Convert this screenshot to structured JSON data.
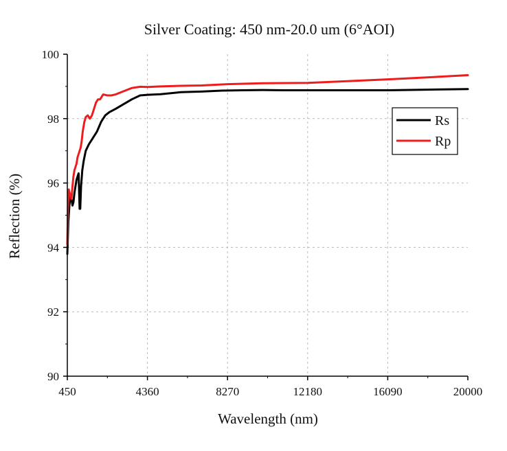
{
  "chart_data": {
    "type": "line",
    "title": "Silver Coating: 450 nm-20.0 um (6°AOI)",
    "xlabel": "Wavelength (nm)",
    "ylabel": "Reflection (%)",
    "xlim": [
      450,
      20000
    ],
    "ylim": [
      90,
      100
    ],
    "xticks": [
      450,
      4360,
      8270,
      12180,
      16090,
      20000
    ],
    "yticks": [
      90,
      92,
      94,
      96,
      98,
      100
    ],
    "grid": true,
    "legend_position": "top-right",
    "series": [
      {
        "name": "Rs",
        "color": "#000000",
        "x": [
          450,
          500,
          550,
          600,
          650,
          700,
          750,
          800,
          850,
          900,
          950,
          1000,
          1050,
          1080,
          1120,
          1180,
          1250,
          1350,
          1500,
          1700,
          1900,
          2100,
          2300,
          2500,
          2800,
          3200,
          3600,
          4000,
          4360,
          5000,
          6000,
          7000,
          8000,
          9000,
          10000,
          11000,
          12180,
          14000,
          16090,
          18000,
          20000
        ],
        "y": [
          93.8,
          94.8,
          95.3,
          95.6,
          95.5,
          95.3,
          95.4,
          95.7,
          95.9,
          96.1,
          96.2,
          96.3,
          95.2,
          95.2,
          95.9,
          96.4,
          96.7,
          97.0,
          97.2,
          97.4,
          97.6,
          97.9,
          98.1,
          98.2,
          98.3,
          98.45,
          98.6,
          98.72,
          98.74,
          98.76,
          98.82,
          98.84,
          98.87,
          98.88,
          98.89,
          98.88,
          98.88,
          98.88,
          98.88,
          98.9,
          98.92
        ]
      },
      {
        "name": "Rp",
        "color": "#ee1c1c",
        "x": [
          450,
          480,
          520,
          560,
          600,
          650,
          700,
          750,
          800,
          850,
          900,
          950,
          1000,
          1050,
          1100,
          1150,
          1200,
          1280,
          1350,
          1450,
          1550,
          1650,
          1750,
          1850,
          1950,
          2050,
          2200,
          2400,
          2600,
          2800,
          3200,
          3600,
          4000,
          4360,
          5000,
          6000,
          7000,
          8270,
          10000,
          12180,
          14000,
          16090,
          18000,
          20000
        ],
        "y": [
          94.1,
          95.2,
          95.8,
          95.7,
          95.6,
          95.5,
          95.9,
          96.2,
          96.4,
          96.5,
          96.6,
          96.8,
          96.9,
          97.0,
          97.1,
          97.3,
          97.6,
          97.9,
          98.05,
          98.1,
          98.0,
          98.1,
          98.3,
          98.5,
          98.6,
          98.6,
          98.75,
          98.72,
          98.72,
          98.75,
          98.85,
          98.95,
          98.99,
          98.98,
          99.0,
          99.02,
          99.03,
          99.07,
          99.1,
          99.11,
          99.16,
          99.22,
          99.28,
          99.35
        ]
      }
    ]
  }
}
